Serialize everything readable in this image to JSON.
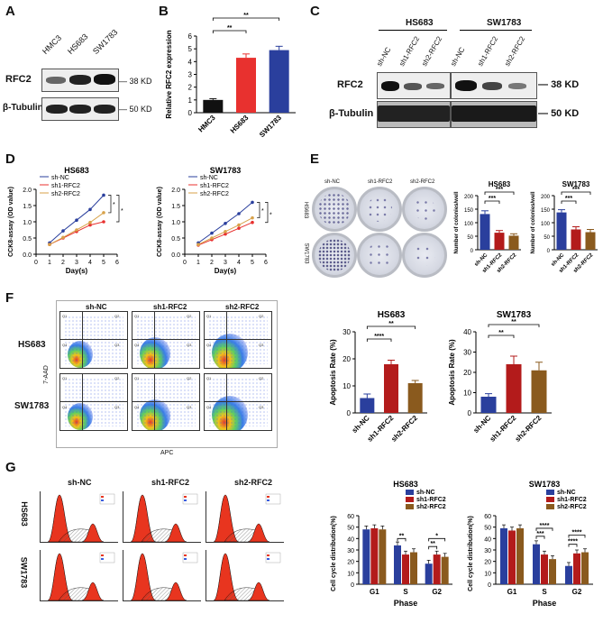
{
  "panels": {
    "A": {
      "label": "A",
      "lanes": [
        "HMC3",
        "HS683",
        "SW1783"
      ],
      "rows": [
        "RFC2",
        "β-Tubulin"
      ],
      "sizes": [
        "38 KD",
        "50 KD"
      ]
    },
    "B": {
      "label": "B",
      "sig": [
        "**",
        "**"
      ],
      "chart_data": {
        "type": "bar",
        "categories": [
          "HMC3",
          "HS683",
          "SW1783"
        ],
        "values": [
          1.0,
          4.3,
          4.9
        ],
        "errors": [
          0.1,
          0.3,
          0.3
        ],
        "colors": [
          "#111111",
          "#e8312f",
          "#2a3f9d"
        ],
        "ylabel": "Relative RFC2 expression",
        "ylim": [
          0,
          6
        ],
        "yticks": [
          "0",
          "1",
          "2",
          "3",
          "4",
          "5",
          "6"
        ]
      }
    },
    "C": {
      "label": "C",
      "groups": [
        "HS683",
        "SW1783"
      ],
      "lanes": [
        "sh-NC",
        "sh1-RFC2",
        "sh2-RFC2"
      ],
      "rows": [
        "RFC2",
        "β-Tubulin"
      ],
      "sizes": [
        "38 KD",
        "50 KD"
      ]
    },
    "D": {
      "label": "D",
      "legend": [
        "sh-NC",
        "sh1-RFC2",
        "sh2-RFC2"
      ],
      "xlabel": "Day(s)",
      "ylabel": "CCK8-assay (OD value)",
      "xticks": [
        "0",
        "1",
        "2",
        "3",
        "4",
        "5",
        "6"
      ],
      "yticks": [
        "0.0",
        "0.5",
        "1.0",
        "1.5",
        "2.0"
      ],
      "sig": [
        "*",
        "*"
      ],
      "chart_data": [
        {
          "type": "line",
          "title": "HS683",
          "x": [
            1,
            2,
            3,
            4,
            5
          ],
          "series": [
            {
              "name": "sh-NC",
              "values": [
                0.35,
                0.72,
                1.05,
                1.38,
                1.82
              ],
              "color": "#2a3f9d"
            },
            {
              "name": "sh1-RFC2",
              "values": [
                0.3,
                0.5,
                0.7,
                0.9,
                1.0
              ],
              "color": "#e8312f"
            },
            {
              "name": "sh2-RFC2",
              "values": [
                0.3,
                0.52,
                0.75,
                0.98,
                1.28
              ],
              "color": "#d8a24a"
            }
          ],
          "ylim": [
            0,
            2
          ]
        },
        {
          "type": "line",
          "title": "SW1783",
          "x": [
            1,
            2,
            3,
            4,
            5
          ],
          "series": [
            {
              "name": "sh-NC",
              "values": [
                0.35,
                0.65,
                0.95,
                1.25,
                1.6
              ],
              "color": "#2a3f9d"
            },
            {
              "name": "sh1-RFC2",
              "values": [
                0.28,
                0.45,
                0.62,
                0.8,
                0.98
              ],
              "color": "#e8312f"
            },
            {
              "name": "sh2-RFC2",
              "values": [
                0.3,
                0.5,
                0.7,
                0.9,
                1.12
              ],
              "color": "#d8a24a"
            }
          ],
          "ylim": [
            0,
            2
          ]
        }
      ]
    },
    "E": {
      "label": "E",
      "columns": [
        "sh-NC",
        "sh1-RFC2",
        "sh2-RFC2"
      ],
      "rows": [
        "HS683",
        "SW1783"
      ],
      "sig": [
        "***",
        "***"
      ],
      "chart_data": [
        {
          "type": "bar",
          "title": "HS683",
          "categories": [
            "sh-NC",
            "sh1-RFC2",
            "sh2-RFC2"
          ],
          "values": [
            132,
            63,
            52
          ],
          "errors": [
            12,
            8,
            7
          ],
          "colors": [
            "#2a3f9d",
            "#b31b1b",
            "#8a5a1e"
          ],
          "ylabel": "Number of colonies/well",
          "ylim": [
            0,
            200
          ],
          "yticks": [
            "0",
            "50",
            "100",
            "150",
            "200"
          ]
        },
        {
          "type": "bar",
          "title": "SW1783",
          "categories": [
            "sh-NC",
            "sh1-RFC2",
            "sh2-RFC2"
          ],
          "values": [
            138,
            75,
            65
          ],
          "errors": [
            10,
            10,
            10
          ],
          "colors": [
            "#2a3f9d",
            "#b31b1b",
            "#8a5a1e"
          ],
          "ylabel": "Number of colonies/well",
          "ylim": [
            0,
            200
          ],
          "yticks": [
            "0",
            "50",
            "100",
            "150",
            "200"
          ]
        }
      ]
    },
    "F": {
      "label": "F",
      "columns": [
        "sh-NC",
        "sh1-RFC2",
        "sh2-RFC2"
      ],
      "rows": [
        "HS683",
        "SW1783"
      ],
      "yaxis": "7-AAD",
      "xaxis": "APC",
      "quad": [
        "Q1",
        "Q2",
        "Q3",
        "Q4"
      ],
      "sig_hs": [
        "****",
        "**"
      ],
      "sig_sw": [
        "**",
        "**"
      ],
      "chart_data": [
        {
          "type": "bar",
          "title": "HS683",
          "categories": [
            "sh-NC",
            "sh1-RFC2",
            "sh2-RFC2"
          ],
          "values": [
            5.5,
            18,
            11
          ],
          "errors": [
            1.5,
            1.5,
            1.0
          ],
          "colors": [
            "#2a3f9d",
            "#b31b1b",
            "#8a5a1e"
          ],
          "ylabel": "Apoptosis Rate (%)",
          "ylim": [
            0,
            30
          ],
          "yticks": [
            "0",
            "10",
            "20",
            "30"
          ]
        },
        {
          "type": "bar",
          "title": "SW1783",
          "categories": [
            "sh-NC",
            "sh1-RFC2",
            "sh2-RFC2"
          ],
          "values": [
            8,
            24,
            21
          ],
          "errors": [
            1.5,
            4,
            4
          ],
          "colors": [
            "#2a3f9d",
            "#b31b1b",
            "#8a5a1e"
          ],
          "ylabel": "Apoptosis Rate (%)",
          "ylim": [
            0,
            40
          ],
          "yticks": [
            "0",
            "10",
            "20",
            "30",
            "40"
          ]
        }
      ]
    },
    "G": {
      "label": "G",
      "columns": [
        "sh-NC",
        "sh1-RFC2",
        "sh2-RFC2"
      ],
      "rows": [
        "HS683",
        "SW1783"
      ],
      "legend": [
        "sh-NC",
        "sh1-RFC2",
        "sh2-RFC2"
      ],
      "xlabel": "Phase",
      "sig_hs": [
        "**",
        "**",
        "*"
      ],
      "sig_sw": [
        "****",
        "***",
        "****",
        "****"
      ],
      "chart_data": [
        {
          "type": "bar",
          "title": "HS683",
          "categories": [
            "G1",
            "S",
            "G2"
          ],
          "series": [
            {
              "name": "sh-NC",
              "values": [
                48,
                34,
                18
              ],
              "color": "#2a3f9d"
            },
            {
              "name": "sh1-RFC2",
              "values": [
                49,
                26,
                26
              ],
              "color": "#b31b1b"
            },
            {
              "name": "sh2-RFC2",
              "values": [
                48,
                28,
                24
              ],
              "color": "#8a5a1e"
            }
          ],
          "ylabel": "Cell cycle distribution(%)",
          "ylim": [
            0,
            60
          ],
          "yticks": [
            "0",
            "10",
            "20",
            "30",
            "40",
            "50",
            "60"
          ]
        },
        {
          "type": "bar",
          "title": "SW1783",
          "categories": [
            "G1",
            "S",
            "G2"
          ],
          "series": [
            {
              "name": "sh-NC",
              "values": [
                49,
                35,
                16
              ],
              "color": "#2a3f9d"
            },
            {
              "name": "sh1-RFC2",
              "values": [
                47,
                26,
                27
              ],
              "color": "#b31b1b"
            },
            {
              "name": "sh2-RFC2",
              "values": [
                49,
                22,
                28
              ],
              "color": "#8a5a1e"
            }
          ],
          "ylabel": "Cell cycle distribution(%)",
          "ylim": [
            0,
            60
          ],
          "yticks": [
            "0",
            "10",
            "20",
            "30",
            "40",
            "50",
            "60"
          ]
        }
      ]
    }
  }
}
